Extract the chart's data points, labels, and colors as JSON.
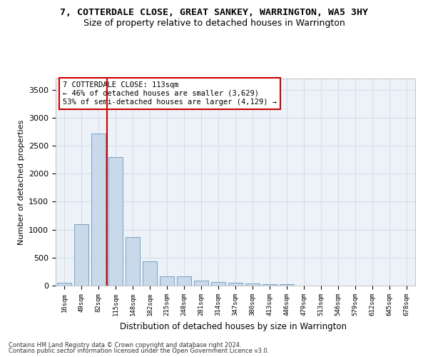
{
  "title": "7, COTTERDALE CLOSE, GREAT SANKEY, WARRINGTON, WA5 3HY",
  "subtitle": "Size of property relative to detached houses in Warrington",
  "xlabel": "Distribution of detached houses by size in Warrington",
  "ylabel": "Number of detached properties",
  "bar_color": "#c9d9ea",
  "bar_edge_color": "#6699bb",
  "grid_color": "#d4dde8",
  "background_color": "#edf1f8",
  "vline_color": "#cc0000",
  "annotation_box_edge": "#cc0000",
  "annotation_text_line1": "7 COTTERDALE CLOSE: 113sqm",
  "annotation_text_line2": "← 46% of detached houses are smaller (3,629)",
  "annotation_text_line3": "53% of semi-detached houses are larger (4,129) →",
  "categories": [
    "16sqm",
    "49sqm",
    "82sqm",
    "115sqm",
    "148sqm",
    "182sqm",
    "215sqm",
    "248sqm",
    "281sqm",
    "314sqm",
    "347sqm",
    "380sqm",
    "413sqm",
    "446sqm",
    "479sqm",
    "513sqm",
    "546sqm",
    "579sqm",
    "612sqm",
    "645sqm",
    "678sqm"
  ],
  "values": [
    50,
    1100,
    2720,
    2300,
    870,
    430,
    170,
    160,
    90,
    60,
    55,
    35,
    30,
    25,
    5,
    5,
    0,
    0,
    0,
    0,
    0
  ],
  "ylim": [
    0,
    3700
  ],
  "yticks": [
    0,
    500,
    1000,
    1500,
    2000,
    2500,
    3000,
    3500
  ],
  "vline_pos": 2.5,
  "footnote1": "Contains HM Land Registry data © Crown copyright and database right 2024.",
  "footnote2": "Contains public sector information licensed under the Open Government Licence v3.0."
}
